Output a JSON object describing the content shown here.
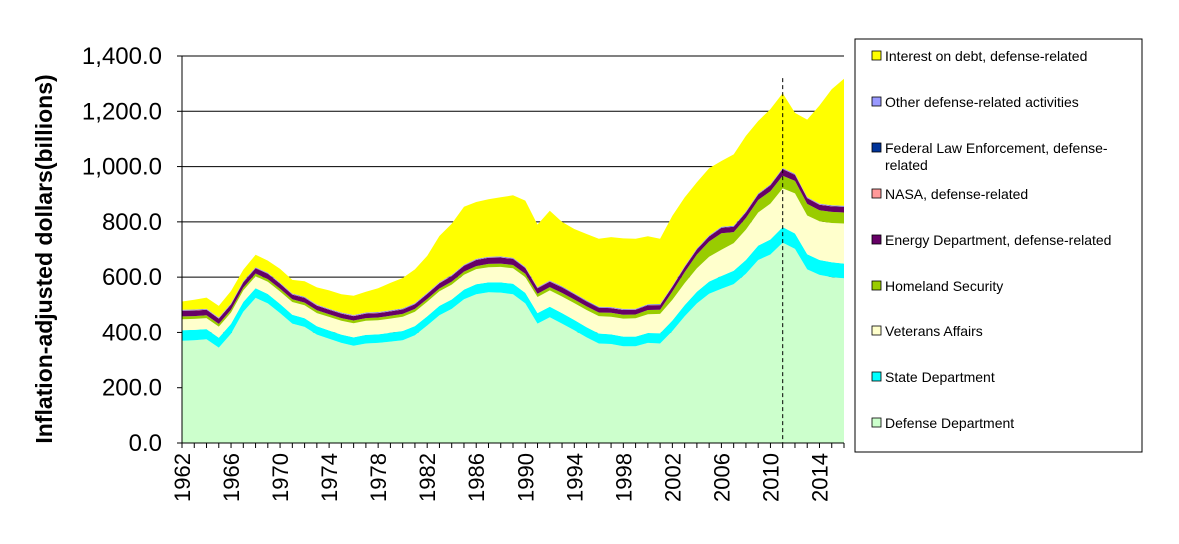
{
  "chart_data": {
    "type": "area",
    "stacked": true,
    "ylabel": "Inflation-adjusted  dollars(billions)",
    "xlabel": "",
    "ylim": [
      0,
      1400
    ],
    "yticks": [
      "0.0",
      "200.0",
      "400.0",
      "600.0",
      "800.0",
      "1,000.0",
      "1,200.0",
      "1,400.0"
    ],
    "ytick_values": [
      0,
      200,
      400,
      600,
      800,
      1000,
      1200,
      1400
    ],
    "xticks": [
      "1962",
      "1966",
      "1970",
      "1974",
      "1978",
      "1982",
      "1986",
      "1990",
      "1994",
      "1998",
      "2002",
      "2006",
      "2010",
      "2014"
    ],
    "xtick_years": [
      1962,
      1966,
      1970,
      1974,
      1978,
      1982,
      1986,
      1990,
      1994,
      1998,
      2002,
      2006,
      2010,
      2014
    ],
    "grid": "horizontal",
    "legend_position": "right",
    "reference_line_year": 2011,
    "x": [
      1962,
      1963,
      1964,
      1965,
      1966,
      1967,
      1968,
      1969,
      1970,
      1971,
      1972,
      1973,
      1974,
      1975,
      1976,
      1977,
      1978,
      1979,
      1980,
      1981,
      1982,
      1983,
      1984,
      1985,
      1986,
      1987,
      1988,
      1989,
      1990,
      1991,
      1992,
      1993,
      1994,
      1995,
      1996,
      1997,
      1998,
      1999,
      2000,
      2001,
      2002,
      2003,
      2004,
      2005,
      2006,
      2007,
      2008,
      2009,
      2010,
      2011,
      2012,
      2013,
      2014,
      2015,
      2016
    ],
    "series": [
      {
        "name": "Defense Department",
        "color": "#ccffcc",
        "values": [
          370,
          372,
          375,
          345,
          395,
          475,
          525,
          505,
          470,
          432,
          420,
          392,
          377,
          362,
          352,
          360,
          362,
          367,
          372,
          390,
          425,
          462,
          485,
          520,
          538,
          545,
          544,
          538,
          505,
          432,
          455,
          432,
          408,
          382,
          360,
          358,
          350,
          350,
          362,
          360,
          405,
          458,
          505,
          540,
          558,
          575,
          612,
          662,
          682,
          725,
          702,
          628,
          608,
          600,
          596
        ]
      },
      {
        "name": "State Department",
        "color": "#00ffff",
        "values": [
          38,
          37,
          37,
          36,
          36,
          35,
          35,
          34,
          33,
          32,
          31,
          30,
          30,
          30,
          30,
          31,
          31,
          32,
          33,
          33,
          33,
          34,
          34,
          35,
          36,
          36,
          37,
          38,
          38,
          38,
          38,
          38,
          37,
          37,
          36,
          35,
          35,
          35,
          36,
          37,
          38,
          40,
          42,
          44,
          46,
          48,
          50,
          52,
          54,
          56,
          56,
          55,
          54,
          54,
          53
        ]
      },
      {
        "name": "Veterans Affairs",
        "color": "#ffffcc",
        "values": [
          40,
          40,
          40,
          40,
          41,
          42,
          43,
          44,
          45,
          46,
          47,
          48,
          49,
          50,
          51,
          51,
          51,
          51,
          52,
          52,
          53,
          53,
          54,
          54,
          55,
          55,
          56,
          56,
          57,
          58,
          59,
          60,
          61,
          62,
          63,
          64,
          65,
          66,
          68,
          70,
          75,
          80,
          85,
          90,
          95,
          100,
          110,
          120,
          130,
          140,
          145,
          140,
          140,
          142,
          145
        ]
      },
      {
        "name": "Homeland Security",
        "color": "#99cc00",
        "values": [
          10,
          10,
          10,
          10,
          10,
          10,
          10,
          10,
          10,
          10,
          10,
          10,
          10,
          10,
          10,
          10,
          10,
          10,
          10,
          10,
          10,
          10,
          11,
          11,
          11,
          12,
          12,
          12,
          12,
          12,
          12,
          13,
          13,
          13,
          13,
          14,
          14,
          14,
          15,
          15,
          30,
          40,
          50,
          55,
          60,
          40,
          42,
          45,
          45,
          46,
          45,
          42,
          40,
          40,
          40
        ]
      },
      {
        "name": "Energy Department, defense-related",
        "color": "#660066",
        "values": [
          20,
          20,
          20,
          19,
          19,
          19,
          19,
          19,
          18,
          17,
          17,
          17,
          16,
          16,
          16,
          16,
          16,
          16,
          16,
          17,
          18,
          19,
          20,
          21,
          22,
          22,
          22,
          22,
          21,
          20,
          20,
          20,
          19,
          18,
          17,
          17,
          17,
          17,
          17,
          17,
          17,
          18,
          18,
          18,
          19,
          19,
          20,
          20,
          21,
          24,
          22,
          21,
          20,
          20,
          20
        ]
      },
      {
        "name": "NASA, defense-related",
        "color": "#ff9999",
        "values": [
          1,
          1,
          1,
          1,
          1,
          1,
          1,
          1,
          1,
          1,
          1,
          1,
          1,
          1,
          1,
          1,
          1,
          1,
          1,
          1,
          1,
          1,
          1,
          1,
          1,
          1,
          1,
          1,
          1,
          1,
          1,
          1,
          1,
          1,
          1,
          1,
          1,
          1,
          1,
          1,
          1,
          1,
          1,
          1,
          1,
          1,
          1,
          1,
          1,
          1,
          1,
          1,
          1,
          1,
          1
        ]
      },
      {
        "name": "Federal Law Enforcement, defense-related",
        "color": "#003399",
        "values": [
          1,
          1,
          1,
          1,
          1,
          1,
          1,
          1,
          1,
          1,
          1,
          1,
          1,
          1,
          1,
          1,
          1,
          1,
          1,
          1,
          1,
          1,
          1,
          1,
          1,
          1,
          1,
          1,
          1,
          1,
          1,
          1,
          1,
          1,
          1,
          1,
          1,
          1,
          1,
          1,
          1,
          1,
          1,
          1,
          1,
          1,
          1,
          1,
          1,
          1,
          1,
          1,
          1,
          1,
          1
        ]
      },
      {
        "name": "Other defense-related activities",
        "color": "#9999ff",
        "values": [
          2,
          2,
          2,
          2,
          2,
          2,
          2,
          2,
          2,
          2,
          2,
          2,
          2,
          2,
          2,
          2,
          2,
          2,
          2,
          2,
          2,
          2,
          2,
          2,
          2,
          2,
          2,
          2,
          2,
          2,
          2,
          2,
          2,
          2,
          2,
          2,
          2,
          2,
          2,
          2,
          2,
          2,
          2,
          2,
          2,
          2,
          2,
          2,
          2,
          2,
          2,
          2,
          2,
          2,
          2
        ]
      },
      {
        "name": "Interest on debt, defense-related",
        "color": "#ffff00",
        "values": [
          30,
          35,
          40,
          42,
          45,
          42,
          45,
          44,
          50,
          49,
          56,
          62,
          66,
          66,
          70,
          75,
          86,
          99,
          110,
          122,
          134,
          167,
          185,
          210,
          206,
          208,
          214,
          226,
          240,
          226,
          252,
          233,
          232,
          240,
          246,
          253,
          255,
          253,
          246,
          236,
          253,
          248,
          239,
          243,
          238,
          258,
          273,
          262,
          272,
          270,
          220,
          280,
          355,
          420,
          460
        ]
      }
    ]
  }
}
